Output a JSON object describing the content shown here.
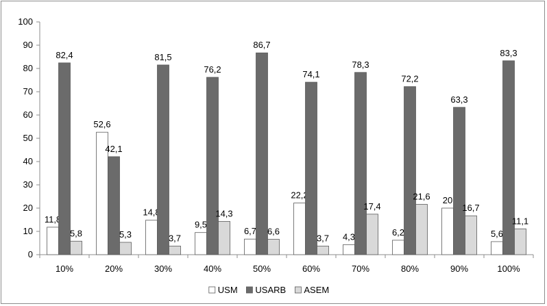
{
  "chart_data": {
    "type": "bar",
    "categories": [
      "10%",
      "20%",
      "30%",
      "40%",
      "50%",
      "60%",
      "70%",
      "80%",
      "90%",
      "100%"
    ],
    "series": [
      {
        "name": "USM",
        "color": "#ffffff",
        "values": [
          11.8,
          52.6,
          14.8,
          9.5,
          6.7,
          22.2,
          4.3,
          6.2,
          20,
          5.6
        ],
        "labels": [
          "11,8",
          "52,6",
          "14,8",
          "9,5",
          "6,7",
          "22,2",
          "4,3",
          "6,2",
          "20",
          "5,6"
        ]
      },
      {
        "name": "USARB",
        "color": "#6b6b6b",
        "values": [
          82.4,
          42.1,
          81.5,
          76.2,
          86.7,
          74.1,
          78.3,
          72.2,
          63.3,
          83.3
        ],
        "labels": [
          "82,4",
          "42,1",
          "81,5",
          "76,2",
          "86,7",
          "74,1",
          "78,3",
          "72,2",
          "63,3",
          "83,3"
        ]
      },
      {
        "name": "ASEM",
        "color": "#d9d9d9",
        "values": [
          5.8,
          5.3,
          3.7,
          14.3,
          6.6,
          3.7,
          17.4,
          21.6,
          16.7,
          11.1
        ],
        "labels": [
          "5,8",
          "5,3",
          "3,7",
          "14,3",
          "6,6",
          "3,7",
          "17,4",
          "21,6",
          "16,7",
          "11,1"
        ]
      }
    ],
    "y_ticks": [
      "0",
      "10",
      "20",
      "30",
      "40",
      "50",
      "60",
      "70",
      "80",
      "90",
      "100"
    ],
    "ylim": [
      0,
      100
    ],
    "grid": false,
    "legend": "bottom"
  }
}
